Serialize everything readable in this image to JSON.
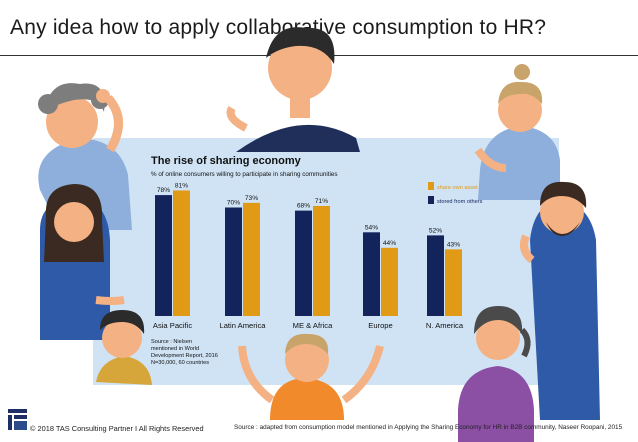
{
  "slide": {
    "title": "Any idea how to apply collaborative consumption to HR?",
    "footer_left": "© 2018 TAS Consulting Partner  I  All Rights Reserved",
    "footer_right": "Source : adapted from consumption model mentioned in Applying the Sharing Economy for HR in B2B community, Naseer Roopani, 2015"
  },
  "colors": {
    "board": "#cfe3f5",
    "navy": "#13245c",
    "gold": "#e09a16"
  },
  "icons": [
    "people-illustration",
    "company-logo"
  ],
  "chart_data": {
    "type": "bar",
    "title": "The rise of sharing economy",
    "subtitle": "% of online consumers willing to participate in sharing communities",
    "categories": [
      "Asia Pacific",
      "Latin America",
      "ME & Africa",
      "Europe",
      "N. America"
    ],
    "series": [
      {
        "name": "stored from others",
        "values": [
          78,
          70,
          68,
          54,
          52
        ]
      },
      {
        "name": "share own asset",
        "values": [
          81,
          73,
          71,
          44,
          43
        ]
      }
    ],
    "data_label_suffix": "%",
    "legend_placement": "top-right",
    "ylim": [
      0,
      100
    ],
    "grid": false,
    "source_note": [
      "Source : Nielsen",
      "mentioned in World",
      "Development Report, 2016",
      "N=30,000, 60 countries"
    ]
  }
}
